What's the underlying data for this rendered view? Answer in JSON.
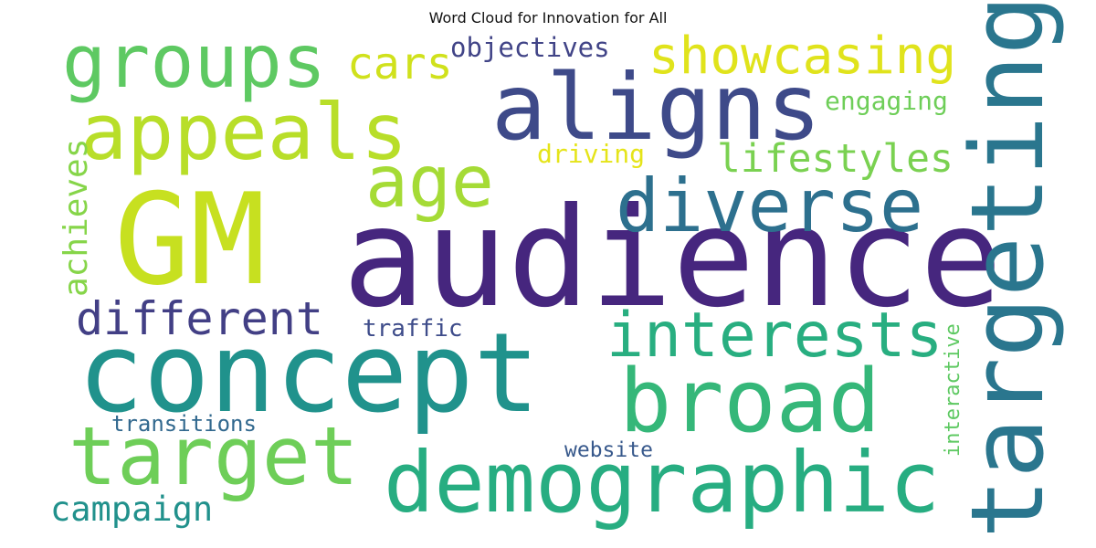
{
  "title": "Word Cloud for Innovation for All",
  "words": [
    {
      "text": "audience",
      "color": "#46267e"
    },
    {
      "text": "GM",
      "color": "#c7e020"
    },
    {
      "text": "concept",
      "color": "#20928c"
    },
    {
      "text": "demographic",
      "color": "#27ad81"
    },
    {
      "text": "targeting",
      "color": "#2a768e"
    },
    {
      "text": "aligns",
      "color": "#3e4a89"
    },
    {
      "text": "appeals",
      "color": "#b8de29"
    },
    {
      "text": "groups",
      "color": "#5ec962"
    },
    {
      "text": "target",
      "color": "#6ece58"
    },
    {
      "text": "broad",
      "color": "#35b779"
    },
    {
      "text": "diverse",
      "color": "#2d708e"
    },
    {
      "text": "age",
      "color": "#a5db36"
    },
    {
      "text": "interests",
      "color": "#28ae80"
    },
    {
      "text": "showcasing",
      "color": "#e0e31c"
    },
    {
      "text": "different",
      "color": "#423f85"
    },
    {
      "text": "cars",
      "color": "#d0e11c"
    },
    {
      "text": "lifestyles",
      "color": "#7ad151"
    },
    {
      "text": "achieves",
      "color": "#86d549"
    },
    {
      "text": "campaign",
      "color": "#21918c"
    },
    {
      "text": "objectives",
      "color": "#414487"
    },
    {
      "text": "engaging",
      "color": "#6ece58"
    },
    {
      "text": "driving",
      "color": "#e5e419"
    },
    {
      "text": "traffic",
      "color": "#3e4c8a"
    },
    {
      "text": "transitions",
      "color": "#31688e"
    },
    {
      "text": "website",
      "color": "#38598c"
    },
    {
      "text": "interactive",
      "color": "#5ec962"
    }
  ]
}
